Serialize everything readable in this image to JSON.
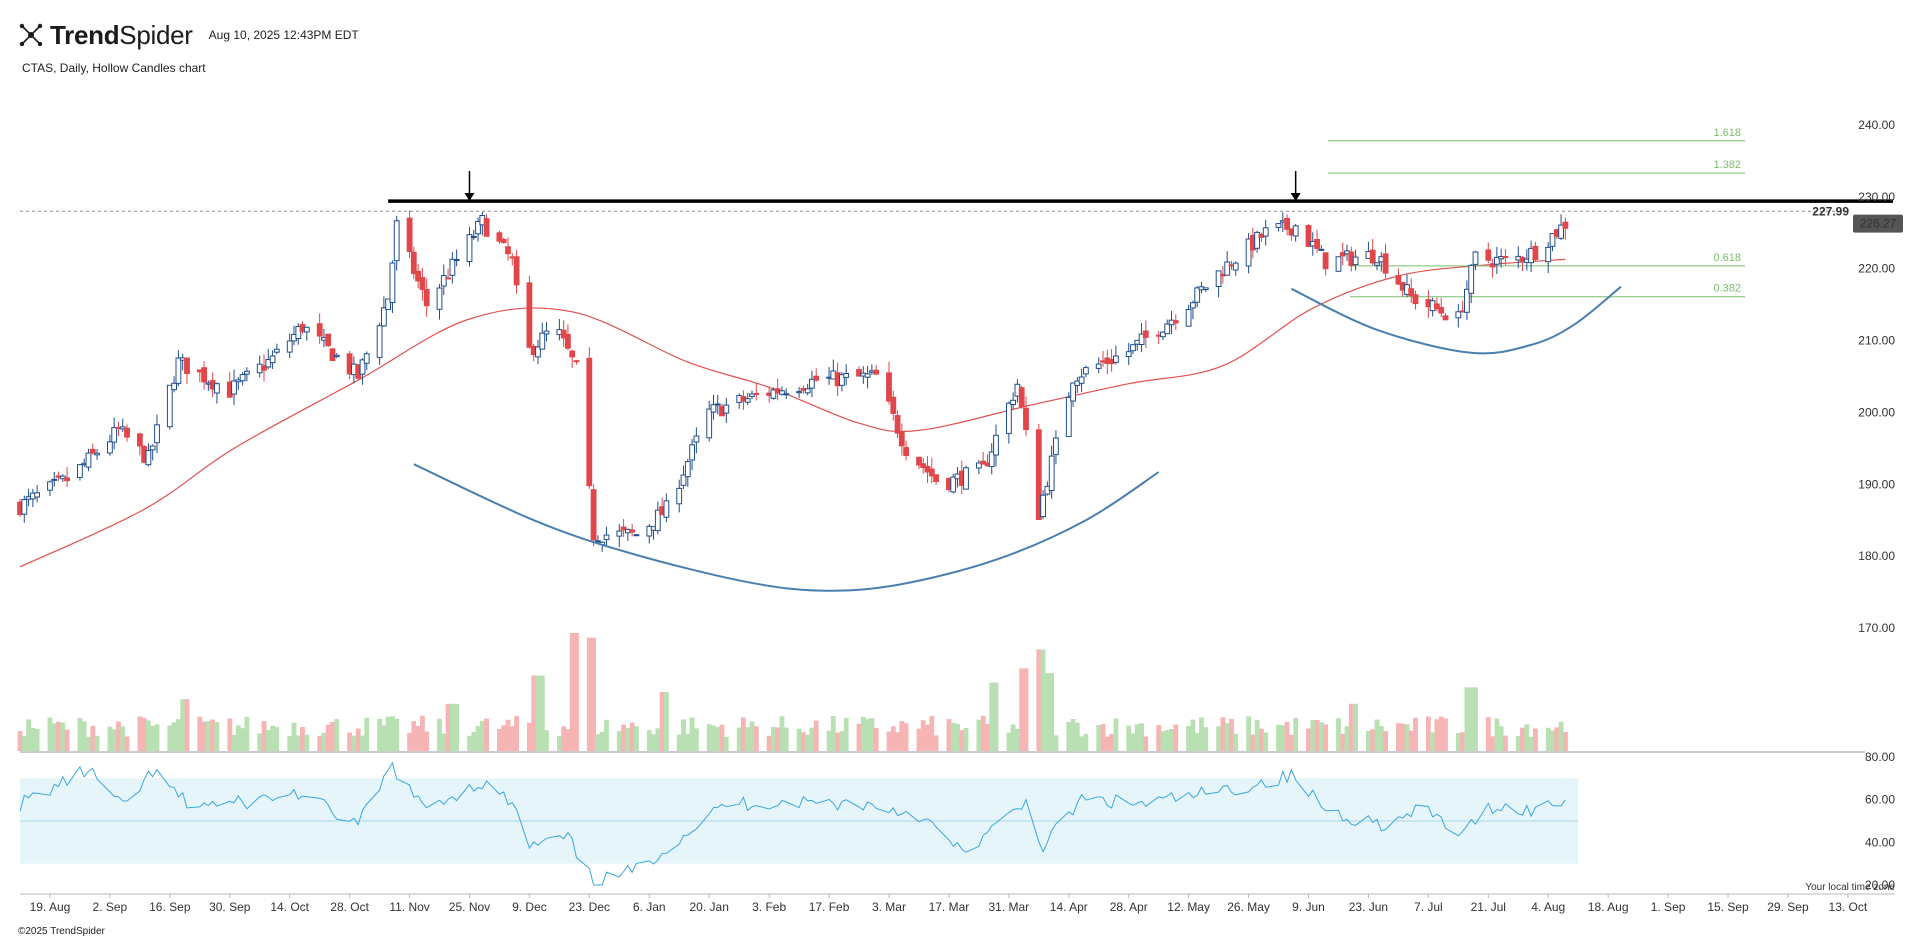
{
  "header": {
    "brand_bold": "Trend",
    "brand_light": "Spider",
    "timestamp": "Aug 10, 2025 12:43PM EDT",
    "subtitle": "CTAS, Daily, Hollow Candles chart"
  },
  "footer": {
    "copyright": "©2025 TrendSpider",
    "timezone_note": "Your local time zone"
  },
  "colors": {
    "up": "#1f4e8c",
    "down": "#e0464a",
    "ma": "#e05050",
    "arc": "#4a7fb0",
    "fib": "#7bbf6a",
    "rsi_line": "#3aa7dc",
    "rsi_band": "#e6f5fa",
    "vol_up": "#b9e0b2",
    "vol_down": "#f7b4b4",
    "price_tag_bg": "#555555"
  },
  "chart_data": {
    "type": "candlestick",
    "ticker": "CTAS",
    "interval": "Daily",
    "price_axis": {
      "min": 167,
      "max": 243,
      "ticks": [
        170,
        180,
        190,
        200,
        210,
        220,
        230,
        240
      ]
    },
    "rsi_axis": {
      "min": 17,
      "max": 83,
      "ticks": [
        20,
        40,
        60,
        80
      ],
      "band": [
        30,
        70
      ]
    },
    "x_axis": {
      "labels": [
        "19. Aug",
        "2. Sep",
        "16. Sep",
        "30. Sep",
        "14. Oct",
        "28. Oct",
        "11. Nov",
        "25. Nov",
        "9. Dec",
        "23. Dec",
        "6. Jan",
        "20. Jan",
        "3. Feb",
        "17. Feb",
        "3. Mar",
        "17. Mar",
        "31. Mar",
        "14. Apr",
        "28. Apr",
        "12. May",
        "26. May",
        "9. Jun",
        "23. Jun",
        "7. Jul",
        "21. Jul",
        "4. Aug",
        "18. Aug",
        "1. Sep",
        "15. Sep",
        "29. Sep",
        "13. Oct"
      ],
      "start_date": "2024-08-12",
      "end_date": "2025-10-17"
    },
    "last_price": "226.27",
    "resistance_price": "227.99",
    "resistance_level": 227.99,
    "resistance_line_value": 229.4,
    "fib_levels": [
      {
        "label": "1.618",
        "value": 237.8
      },
      {
        "label": "1.382",
        "value": 233.3
      },
      {
        "label": "0.618",
        "value": 220.4
      },
      {
        "label": "0.382",
        "value": 216.1
      }
    ],
    "arrows": [
      {
        "date": "2024-11-25"
      },
      {
        "date": "2025-06-06"
      }
    ],
    "cup": [
      [
        "2024-11-12",
        192.8
      ],
      [
        "2024-12-10",
        185.0
      ],
      [
        "2025-01-01",
        180.5
      ],
      [
        "2025-01-28",
        176.5
      ],
      [
        "2025-02-15",
        175.2
      ],
      [
        "2025-03-05",
        176.0
      ],
      [
        "2025-03-28",
        179.5
      ],
      [
        "2025-04-18",
        185.0
      ],
      [
        "2025-05-05",
        191.7
      ]
    ],
    "handle": [
      [
        "2025-06-05",
        217.2
      ],
      [
        "2025-06-25",
        211.5
      ],
      [
        "2025-07-17",
        208.3
      ],
      [
        "2025-07-31",
        209.4
      ],
      [
        "2025-08-10",
        212.2
      ],
      [
        "2025-08-21",
        217.5
      ]
    ],
    "ma_line": [
      [
        "2024-08-12",
        178.5
      ],
      [
        "2024-09-10",
        186.5
      ],
      [
        "2024-10-01",
        195.0
      ],
      [
        "2024-10-30",
        204.5
      ],
      [
        "2024-11-25",
        213.0
      ],
      [
        "2024-12-19",
        214.0
      ],
      [
        "2025-01-15",
        207.0
      ],
      [
        "2025-02-03",
        203.5
      ],
      [
        "2025-02-24",
        198.5
      ],
      [
        "2025-03-10",
        197.5
      ],
      [
        "2025-04-05",
        201.0
      ],
      [
        "2025-04-28",
        204.0
      ],
      [
        "2025-05-20",
        206.5
      ],
      [
        "2025-06-10",
        214.5
      ],
      [
        "2025-06-30",
        219.0
      ],
      [
        "2025-07-20",
        220.5
      ],
      [
        "2025-08-08",
        221.3
      ]
    ],
    "price_path": [
      [
        "2024-08-12",
        187.0
      ],
      [
        "2024-08-24",
        191.0
      ],
      [
        "2024-09-04",
        197.5
      ],
      [
        "2024-09-11",
        193.5
      ],
      [
        "2024-09-18",
        207.0
      ],
      [
        "2024-09-30",
        203.0
      ],
      [
        "2024-10-10",
        207.5
      ],
      [
        "2024-10-17",
        212.0
      ],
      [
        "2024-10-30",
        205.0
      ],
      [
        "2024-11-06",
        216.0
      ],
      [
        "2024-11-08",
        226.0
      ],
      [
        "2024-11-15",
        215.0
      ],
      [
        "2024-11-28",
        226.5
      ],
      [
        "2024-12-05",
        221.0
      ],
      [
        "2024-12-08",
        208.0
      ],
      [
        "2024-12-15",
        212.0
      ],
      [
        "2024-12-20",
        206.0
      ],
      [
        "2024-12-24",
        183.0
      ],
      [
        "2025-01-03",
        183.0
      ],
      [
        "2025-01-10",
        186.5
      ],
      [
        "2025-01-20",
        200.0
      ],
      [
        "2025-02-01",
        202.5
      ],
      [
        "2025-02-14",
        204.5
      ],
      [
        "2025-02-28",
        205.0
      ],
      [
        "2025-03-07",
        195.0
      ],
      [
        "2025-03-15",
        190.0
      ],
      [
        "2025-03-25",
        192.0
      ],
      [
        "2025-04-02",
        204.0
      ],
      [
        "2025-04-07",
        186.0
      ],
      [
        "2025-04-15",
        205.0
      ],
      [
        "2025-04-28",
        208.5
      ],
      [
        "2025-05-10",
        214.0
      ],
      [
        "2025-05-20",
        220.0
      ],
      [
        "2025-05-30",
        225.0
      ],
      [
        "2025-06-06",
        226.0
      ],
      [
        "2025-06-13",
        221.0
      ],
      [
        "2025-06-25",
        222.0
      ],
      [
        "2025-07-03",
        216.0
      ],
      [
        "2025-07-14",
        213.0
      ],
      [
        "2025-07-18",
        221.5
      ],
      [
        "2025-07-26",
        221.0
      ],
      [
        "2025-08-01",
        222.5
      ],
      [
        "2025-08-08",
        226.27
      ]
    ],
    "rsi_path": [
      [
        "2024-08-12",
        58
      ],
      [
        "2024-08-28",
        74
      ],
      [
        "2024-09-05",
        56
      ],
      [
        "2024-09-12",
        73
      ],
      [
        "2024-09-20",
        58
      ],
      [
        "2024-10-01",
        58
      ],
      [
        "2024-10-16",
        63
      ],
      [
        "2024-10-30",
        48
      ],
      [
        "2024-11-07",
        76
      ],
      [
        "2024-11-14",
        56
      ],
      [
        "2024-11-28",
        68
      ],
      [
        "2024-12-05",
        58
      ],
      [
        "2024-12-09",
        38
      ],
      [
        "2024-12-18",
        42
      ],
      [
        "2024-12-24",
        21
      ],
      [
        "2025-01-03",
        27
      ],
      [
        "2025-01-15",
        45
      ],
      [
        "2025-01-24",
        58
      ],
      [
        "2025-02-10",
        59
      ],
      [
        "2025-02-25",
        58
      ],
      [
        "2025-03-10",
        53
      ],
      [
        "2025-03-20",
        35
      ],
      [
        "2025-03-30",
        50
      ],
      [
        "2025-04-04",
        59
      ],
      [
        "2025-04-08",
        38
      ],
      [
        "2025-04-17",
        60
      ],
      [
        "2025-05-01",
        58
      ],
      [
        "2025-05-20",
        64
      ],
      [
        "2025-06-05",
        71
      ],
      [
        "2025-06-14",
        54
      ],
      [
        "2025-06-28",
        48
      ],
      [
        "2025-07-06",
        56
      ],
      [
        "2025-07-15",
        43
      ],
      [
        "2025-07-21",
        57
      ],
      [
        "2025-08-01",
        55
      ],
      [
        "2025-08-08",
        60
      ]
    ],
    "volume_spikes": [
      [
        "2024-12-20",
        5.0
      ],
      [
        "2024-12-23",
        4.8
      ],
      [
        "2024-12-11",
        3.2
      ],
      [
        "2025-04-07",
        4.3
      ],
      [
        "2025-04-04",
        3.5
      ],
      [
        "2025-04-09",
        3.3
      ],
      [
        "2025-03-28",
        2.9
      ],
      [
        "2025-07-17",
        2.7
      ],
      [
        "2025-01-10",
        2.5
      ],
      [
        "2025-06-20",
        2.0
      ],
      [
        "2024-11-21",
        2.0
      ],
      [
        "2024-09-20",
        2.2
      ]
    ]
  }
}
